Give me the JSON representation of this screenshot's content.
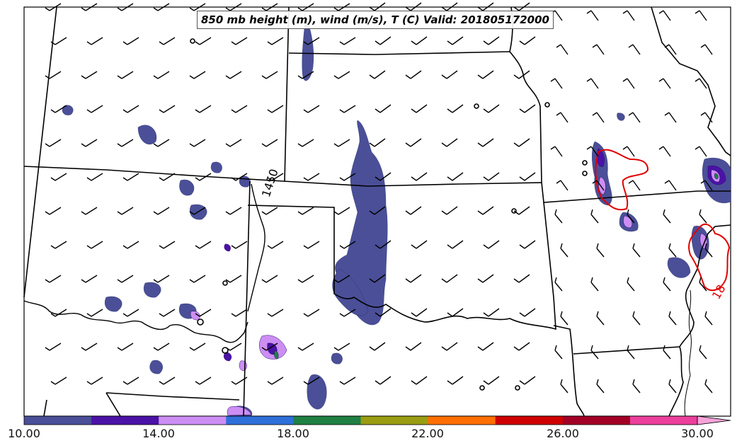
{
  "title": "850 mb height (m), wind (m/s), T (C) Valid: 201805172000",
  "contour_labels": {
    "height": "1450",
    "temperature": "18"
  },
  "colorbar": {
    "ticks": [
      "10.00",
      "14.00",
      "18.00",
      "22.00",
      "26.00",
      "30.00"
    ],
    "colors": [
      "#4a4f98",
      "#4b12a6",
      "#cc8ef3",
      "#2f6fd9",
      "#1f8043",
      "#9a9d12",
      "#ff6e00",
      "#cf0000",
      "#a30025",
      "#ec3f9c",
      "#f7a3da"
    ]
  },
  "colors": {
    "temperature_contour": "#e00000",
    "height_contour": "#000000",
    "borders": "#000000"
  }
}
